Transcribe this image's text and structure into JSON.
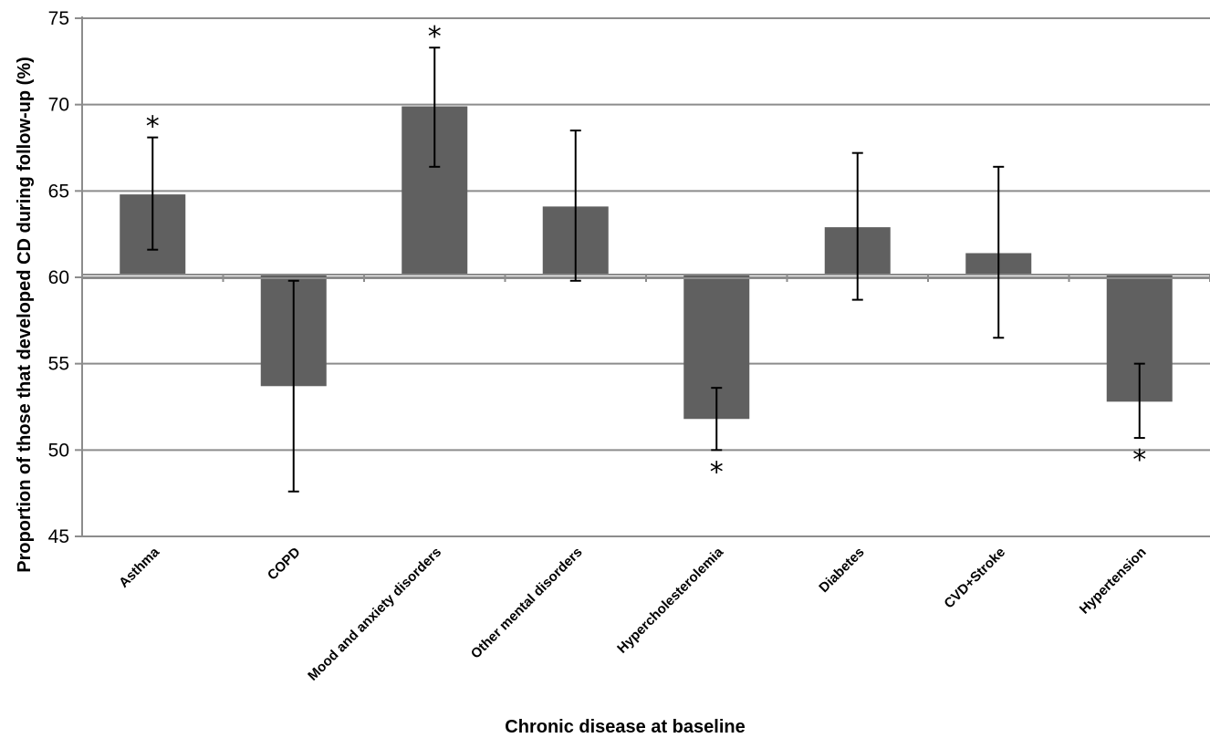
{
  "chart_data": {
    "type": "bar",
    "title": "",
    "xlabel": "Chronic disease at baseline",
    "ylabel": "Proportion of those that developed CD during follow-up  (%)",
    "ylim": [
      45,
      75
    ],
    "yticks": [
      45,
      50,
      55,
      60,
      65,
      70,
      75
    ],
    "baseline": 60,
    "grid": true,
    "categories": [
      "Asthma",
      "COPD",
      "Mood and anxiety disorders",
      "Other mental disorders",
      "Hypercholesterolemia",
      "Diabetes",
      "CVD+Stroke",
      "Hypertension"
    ],
    "values": [
      64.8,
      53.7,
      69.9,
      64.1,
      51.8,
      62.9,
      61.4,
      52.8
    ],
    "error_low": [
      61.6,
      47.6,
      66.4,
      59.8,
      50.0,
      58.7,
      56.5,
      50.7
    ],
    "error_high": [
      68.1,
      59.8,
      73.3,
      68.5,
      53.6,
      67.2,
      66.4,
      55.0
    ],
    "significance_marker": "*",
    "significant": [
      true,
      false,
      true,
      false,
      true,
      false,
      false,
      true
    ],
    "bar_color": "#606060"
  }
}
